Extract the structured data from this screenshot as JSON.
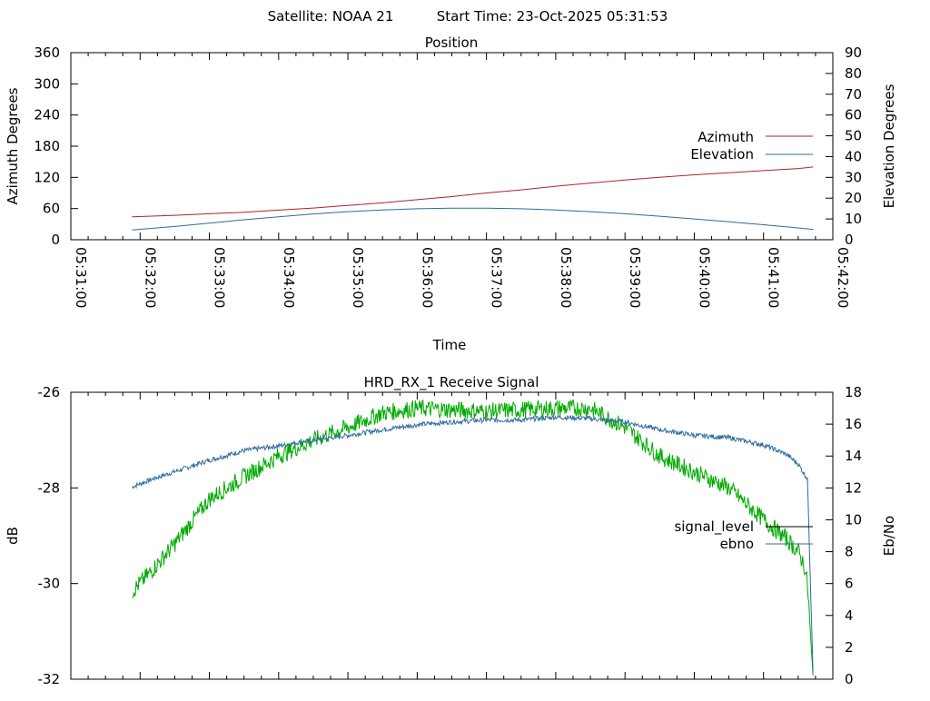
{
  "header": {
    "satellite_label": "Satellite: NOAA 21",
    "start_time_label": "Start Time: 23-Oct-2025 05:31:53"
  },
  "chart_data": [
    {
      "type": "line",
      "title": "Position",
      "xlabel": "Time",
      "ylabel": "Azimuth Degrees",
      "y2label": "Elevation Degrees",
      "x_ticks": [
        "05:31:00",
        "05:32:00",
        "05:33:00",
        "05:34:00",
        "05:35:00",
        "05:36:00",
        "05:37:00",
        "05:38:00",
        "05:39:00",
        "05:40:00",
        "05:41:00",
        "05:42:00"
      ],
      "xlim": [
        "05:31:00",
        "05:42:00"
      ],
      "ylim": [
        0,
        360
      ],
      "y_ticks": [
        0,
        60,
        120,
        180,
        240,
        300,
        360
      ],
      "y2lim": [
        0,
        90
      ],
      "y2_ticks": [
        0,
        10,
        20,
        30,
        40,
        50,
        60,
        70,
        80,
        90
      ],
      "legend_position": "right",
      "series": [
        {
          "name": "Azimuth",
          "axis": "y",
          "color": "#b22222",
          "x": [
            "05:31:53",
            "05:32:30",
            "05:33:00",
            "05:33:30",
            "05:34:00",
            "05:34:30",
            "05:35:00",
            "05:35:30",
            "05:36:00",
            "05:36:30",
            "05:37:00",
            "05:37:30",
            "05:38:00",
            "05:38:30",
            "05:39:00",
            "05:39:30",
            "05:40:00",
            "05:40:30",
            "05:41:00",
            "05:41:30",
            "05:41:43"
          ],
          "values": [
            44,
            47,
            50,
            53,
            57,
            61,
            66,
            71,
            77,
            83,
            90,
            96,
            103,
            109,
            115,
            120,
            125,
            129,
            133,
            137,
            140
          ]
        },
        {
          "name": "Elevation",
          "axis": "y2",
          "color": "#2e6b9e",
          "x": [
            "05:31:53",
            "05:32:30",
            "05:33:00",
            "05:33:30",
            "05:34:00",
            "05:34:30",
            "05:35:00",
            "05:35:30",
            "05:36:00",
            "05:36:30",
            "05:37:00",
            "05:37:30",
            "05:38:00",
            "05:38:30",
            "05:39:00",
            "05:39:30",
            "05:40:00",
            "05:40:30",
            "05:41:00",
            "05:41:30",
            "05:41:43"
          ],
          "values": [
            4.7,
            6.4,
            8.0,
            9.6,
            11.0,
            12.4,
            13.5,
            14.3,
            14.9,
            15.2,
            15.2,
            14.9,
            14.3,
            13.5,
            12.5,
            11.3,
            10.0,
            8.6,
            7.2,
            5.7,
            5.0
          ]
        }
      ]
    },
    {
      "type": "line",
      "title": "HRD_RX_1 Receive Signal",
      "ylabel": "dB",
      "y2label": "Eb/No",
      "xlim": [
        "05:31:00",
        "05:42:00"
      ],
      "ylim": [
        -32,
        -26
      ],
      "y_ticks": [
        -32,
        -30,
        -28,
        -26
      ],
      "y2lim": [
        0,
        18
      ],
      "y2_ticks": [
        0,
        2,
        4,
        6,
        8,
        10,
        12,
        14,
        16,
        18
      ],
      "legend_position": "right",
      "series": [
        {
          "name": "signal_level",
          "axis": "y",
          "color": "#2e6b9e",
          "x": [
            "05:31:53",
            "05:32:10",
            "05:32:30",
            "05:33:00",
            "05:33:30",
            "05:34:00",
            "05:34:30",
            "05:35:00",
            "05:35:30",
            "05:36:00",
            "05:36:30",
            "05:37:00",
            "05:37:30",
            "05:38:00",
            "05:38:30",
            "05:39:00",
            "05:39:30",
            "05:40:00",
            "05:40:30",
            "05:41:00",
            "05:41:20",
            "05:41:30",
            "05:41:35",
            "05:41:38",
            "05:41:43"
          ],
          "values": [
            -27.98,
            -27.82,
            -27.66,
            -27.42,
            -27.22,
            -27.12,
            -27.0,
            -26.9,
            -26.78,
            -26.68,
            -26.62,
            -26.58,
            -26.58,
            -26.52,
            -26.55,
            -26.62,
            -26.78,
            -26.9,
            -26.95,
            -27.1,
            -27.3,
            -27.5,
            -27.7,
            -27.8,
            -32.0
          ]
        },
        {
          "name": "ebno",
          "axis": "y2",
          "color": "#00aa00",
          "x": [
            "05:31:53",
            "05:32:10",
            "05:32:30",
            "05:33:00",
            "05:33:30",
            "05:34:00",
            "05:34:30",
            "05:35:00",
            "05:35:30",
            "05:36:00",
            "05:36:30",
            "05:37:00",
            "05:37:30",
            "05:38:00",
            "05:38:30",
            "05:39:00",
            "05:39:30",
            "05:40:00",
            "05:40:30",
            "05:41:00",
            "05:41:20",
            "05:41:30",
            "05:41:35",
            "05:41:38",
            "05:41:43"
          ],
          "values": [
            5.5,
            6.8,
            8.5,
            11.3,
            12.7,
            14.0,
            15.0,
            15.8,
            16.7,
            17.0,
            16.9,
            16.8,
            16.9,
            17.0,
            17.0,
            15.8,
            14.0,
            13.0,
            12.0,
            10.0,
            8.8,
            8.0,
            7.2,
            6.0,
            0.0
          ]
        }
      ]
    }
  ]
}
